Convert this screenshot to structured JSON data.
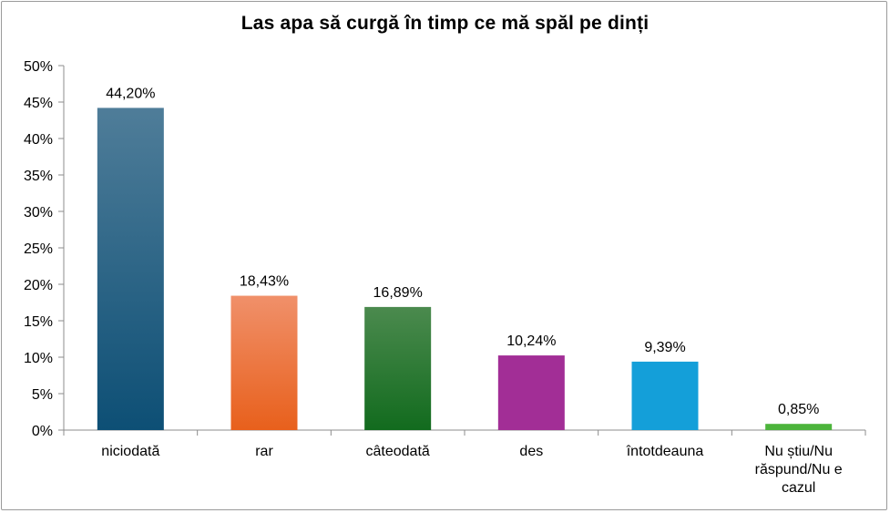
{
  "chart_data": {
    "type": "bar",
    "title": "Las apa să curgă în timp ce mă spăl pe dinți",
    "xlabel": "",
    "ylabel": "",
    "ylim": [
      0,
      50
    ],
    "y_ticks": [
      "0%",
      "5%",
      "10%",
      "15%",
      "20%",
      "25%",
      "30%",
      "35%",
      "40%",
      "45%",
      "50%"
    ],
    "grid": false,
    "legend": "none",
    "categories": [
      [
        "niciodată"
      ],
      [
        "rar"
      ],
      [
        "câteodată"
      ],
      [
        "des"
      ],
      [
        "întotdeauna"
      ],
      [
        "Nu știu/Nu",
        "răspund/Nu e",
        "cazul"
      ]
    ],
    "values": [
      44.2,
      18.43,
      16.89,
      10.24,
      9.39,
      0.85
    ],
    "data_labels": [
      "44,20%",
      "18,43%",
      "16,89%",
      "10,24%",
      "9,39%",
      "0,85%"
    ],
    "bar_colors": [
      [
        "#4f7d99",
        "#0d4f75"
      ],
      [
        "#f0906a",
        "#e8601c"
      ],
      [
        "#4b8a4e",
        "#126b1e"
      ],
      [
        "#a22e96",
        "#a22e96"
      ],
      [
        "#149fd9",
        "#149fd9"
      ],
      [
        "#4cb43c",
        "#4cb43c"
      ]
    ]
  }
}
